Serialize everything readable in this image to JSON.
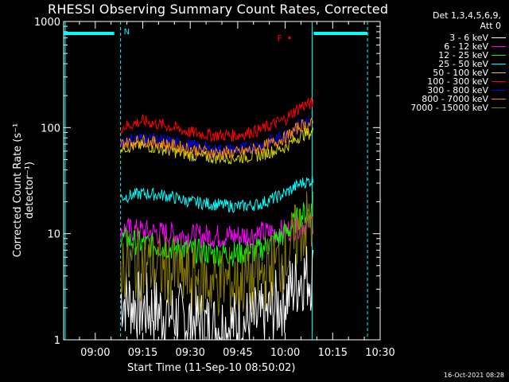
{
  "chart_data": {
    "type": "line",
    "title": "RHESSI Observing Summary Count Rates, Corrected",
    "xlabel": "Start Time (11-Sep-10 08:50:02)",
    "ylabel": "Corrected Count Rate (s⁻¹ detector⁻¹)",
    "yscale": "log",
    "ylim": [
      1,
      1000
    ],
    "xlim": [
      "08:50",
      "10:30"
    ],
    "x_ticks": [
      "09:00",
      "09:15",
      "09:30",
      "09:45",
      "10:00",
      "10:15",
      "10:30"
    ],
    "y_ticks": [
      "1",
      "10",
      "100",
      "1000"
    ],
    "detector_info": [
      "Det 1,3,4,5,6,9,",
      "Att 0"
    ],
    "flags": {
      "night_label": "N",
      "flare_label": "F"
    },
    "timestamp": "16-Oct-2021 08:28",
    "x": [
      "09:08",
      "09:15",
      "09:22",
      "09:30",
      "09:37",
      "09:45",
      "09:52",
      "10:00",
      "10:05",
      "10:09"
    ],
    "series": [
      {
        "name": "3 - 6 keV",
        "color": "#ffffff",
        "values": [
          2.5,
          2.0,
          1.8,
          1.5,
          1.3,
          1.4,
          1.5,
          2.5,
          4.0,
          4.0
        ]
      },
      {
        "name": "6 - 12 keV",
        "color": "#ff00ff",
        "values": [
          11,
          10.5,
          10,
          9.5,
          9.5,
          9.5,
          10,
          10.5,
          12,
          13
        ]
      },
      {
        "name": "12 - 25 keV",
        "color": "#00ff00",
        "values": [
          9,
          8,
          7.5,
          7,
          6.5,
          6.5,
          7,
          10,
          15,
          17
        ]
      },
      {
        "name": "25 - 50 keV",
        "color": "#00ffff",
        "values": [
          22,
          24,
          23,
          20,
          19,
          18,
          19,
          24,
          30,
          32
        ]
      },
      {
        "name": "50 - 100 keV",
        "color": "#d4d400",
        "values": [
          65,
          68,
          62,
          55,
          52,
          52,
          55,
          65,
          85,
          90
        ]
      },
      {
        "name": "100 - 300 keV",
        "color": "#ff0000",
        "values": [
          100,
          115,
          105,
          90,
          85,
          85,
          95,
          120,
          160,
          170
        ]
      },
      {
        "name": "300 - 800 keV",
        "color": "#0000ff",
        "values": [
          75,
          80,
          75,
          68,
          62,
          62,
          68,
          85,
          110,
          112
        ]
      },
      {
        "name": "800 - 7000 keV",
        "color": "#ff8800",
        "values": [
          70,
          76,
          70,
          63,
          58,
          58,
          64,
          80,
          105,
          108
        ]
      },
      {
        "name": "7000 - 15000 keV",
        "color": "#8b7d00",
        "values": [
          5.0,
          5.2,
          4.5,
          3.8,
          3.5,
          3.5,
          3.8,
          6.0,
          11,
          13
        ]
      }
    ]
  }
}
